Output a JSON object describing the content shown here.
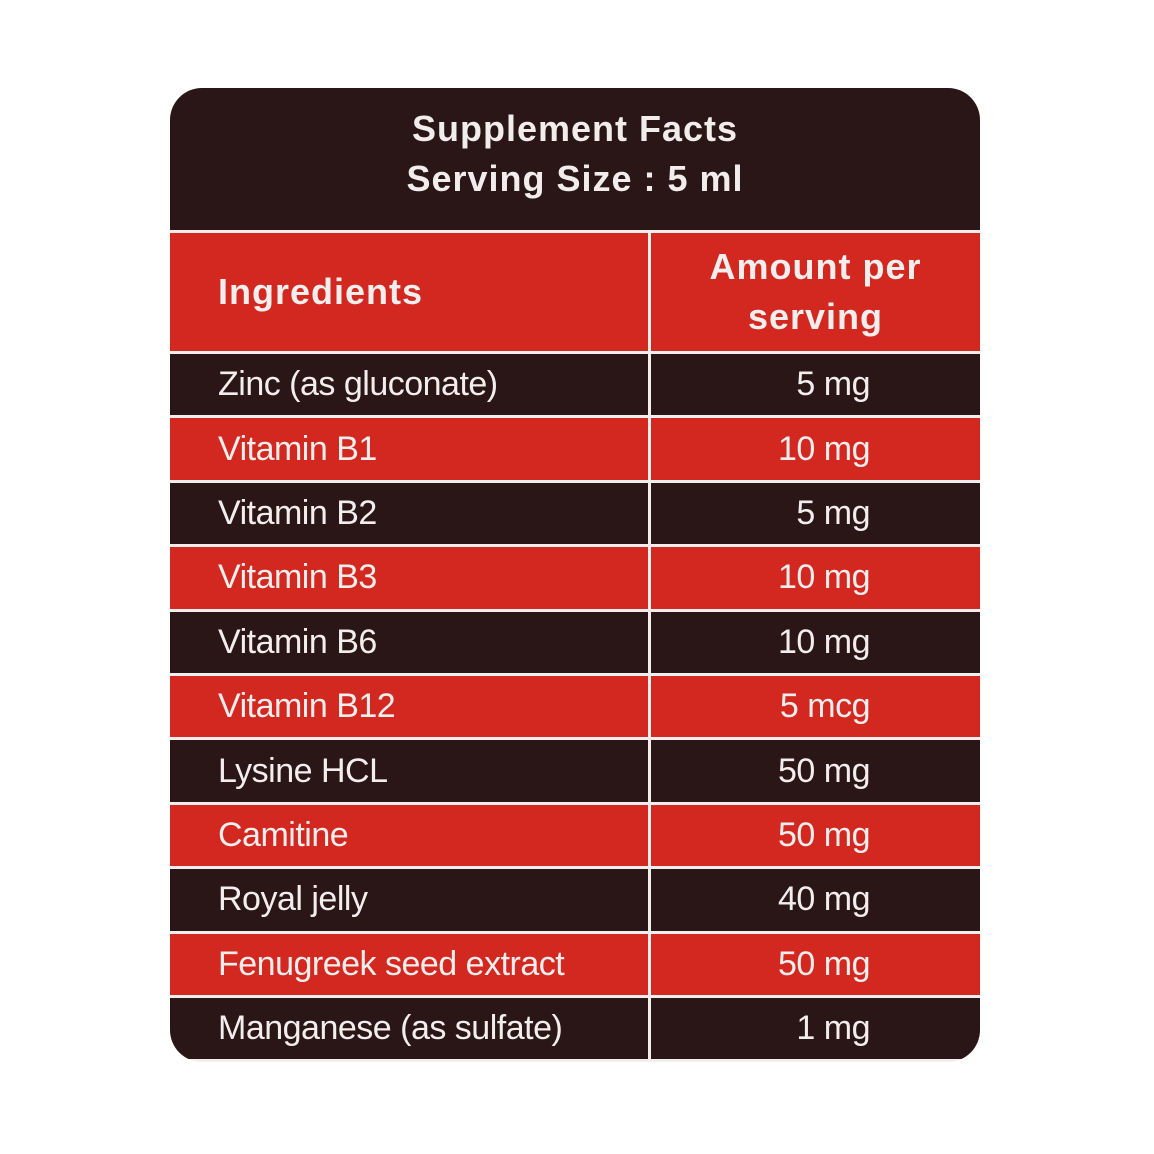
{
  "header": {
    "title": "Supplement Facts",
    "serving_size": "Serving Size : 5 ml"
  },
  "table": {
    "columns": [
      "Ingredients",
      "Amount per serving"
    ],
    "rows": [
      [
        "Zinc (as gluconate)",
        "5 mg"
      ],
      [
        "Vitamin B1",
        "10 mg"
      ],
      [
        "Vitamin B2",
        "5 mg"
      ],
      [
        "Vitamin B3",
        "10 mg"
      ],
      [
        "Vitamin B6",
        "10 mg"
      ],
      [
        "Vitamin B12",
        "5 mcg"
      ],
      [
        "Lysine HCL",
        "50 mg"
      ],
      [
        "Camitine",
        "50 mg"
      ],
      [
        "Royal jelly",
        "40 mg"
      ],
      [
        "Fenugreek seed extract",
        "50 mg"
      ],
      [
        "Manganese (as sulfate)",
        "1 mg"
      ]
    ]
  }
}
